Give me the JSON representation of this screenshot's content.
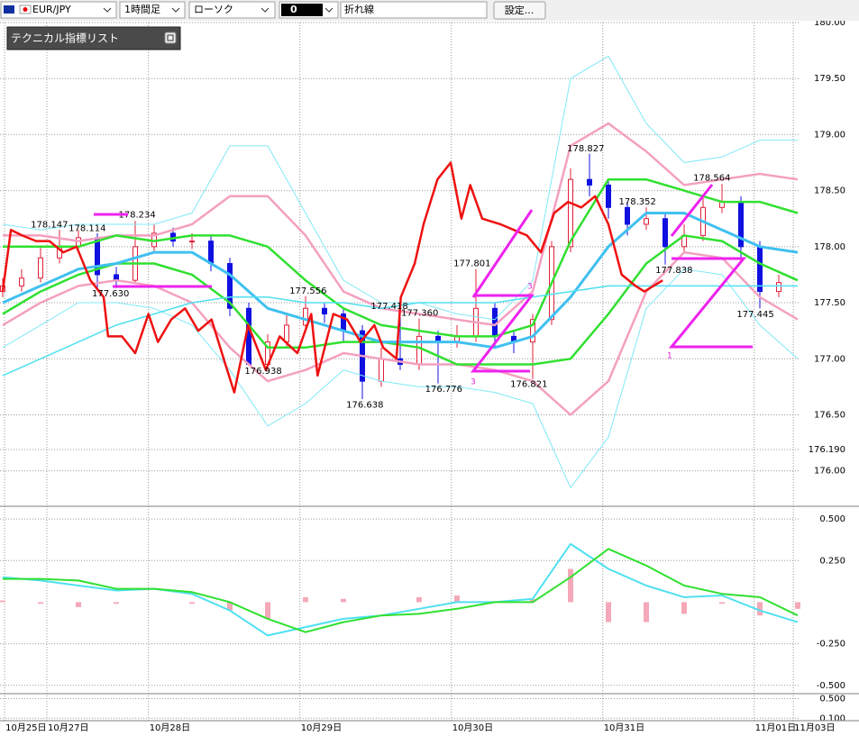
{
  "toolbar": {
    "symbol": "EUR/JPY",
    "timeframe": "1時間足",
    "chart_style": "ローソク",
    "field_value": "0",
    "line_type": "折れ線",
    "settings_button": "設定..."
  },
  "indicator_list": {
    "title": "テクニカル指標リスト"
  },
  "drawing_labels": [
    "3",
    "3",
    "1"
  ],
  "chart_data": [
    {
      "type": "candlestick",
      "xlim": [
        0,
        126
      ],
      "ylim": [
        175.7,
        180
      ],
      "grid": true,
      "yticks": [
        {
          "value": 180,
          "label": "180.00"
        },
        {
          "value": 179.5,
          "label": "179.50"
        },
        {
          "value": 179,
          "label": "179.00"
        },
        {
          "value": 178.5,
          "label": "178.50"
        },
        {
          "value": 178,
          "label": "178.00"
        },
        {
          "value": 177.5,
          "label": "177.50"
        },
        {
          "value": 177,
          "label": "177.00"
        },
        {
          "value": 176.5,
          "label": "176.50"
        },
        {
          "value": 176.19,
          "label": "176.190"
        },
        {
          "value": 176,
          "label": "176.00"
        }
      ],
      "xticks": [
        {
          "value": 0.3,
          "label": "10月25日"
        },
        {
          "value": 7,
          "label": "10月27日"
        },
        {
          "value": 23.1,
          "label": "10月28日"
        },
        {
          "value": 47.1,
          "label": "10月29日"
        },
        {
          "value": 71.1,
          "label": "10月30日"
        },
        {
          "value": 95.1,
          "label": "10月31日"
        },
        {
          "value": 119.1,
          "label": "11月01日"
        },
        {
          "value": 125.3,
          "label": "11月03日"
        }
      ],
      "candles": {
        "up_color": "#e0203a",
        "down_color": "#1010e0",
        "x": [
          0,
          3,
          6,
          9,
          12,
          15,
          18,
          21,
          24,
          27,
          30,
          33,
          36,
          39,
          42,
          45,
          48,
          51,
          54,
          57,
          60,
          63,
          66,
          69,
          72,
          75,
          78,
          81,
          84,
          87,
          90,
          93,
          96,
          99,
          102,
          105,
          108,
          111,
          114,
          117,
          120,
          123
        ],
        "open": [
          177.6,
          177.65,
          177.72,
          177.9,
          178.0,
          178.08,
          177.75,
          177.7,
          178.0,
          178.12,
          178.05,
          178.05,
          177.85,
          177.45,
          176.95,
          177.15,
          177.3,
          177.45,
          177.4,
          177.25,
          176.8,
          177.0,
          176.95,
          177.2,
          177.15,
          177.2,
          177.45,
          177.2,
          177.15,
          177.35,
          178.0,
          178.6,
          178.55,
          178.35,
          178.2,
          178.25,
          178.0,
          178.1,
          178.35,
          178.4,
          178.0,
          177.6
        ],
        "high": [
          177.72,
          177.8,
          178.0,
          178.15,
          178.15,
          178.12,
          177.82,
          178.23,
          178.2,
          178.17,
          178.12,
          178.1,
          177.9,
          177.5,
          177.22,
          177.4,
          177.56,
          177.5,
          177.45,
          177.3,
          177.1,
          177.42,
          177.36,
          177.25,
          177.3,
          177.8,
          177.5,
          177.25,
          177.4,
          178.05,
          178.7,
          178.83,
          178.6,
          178.4,
          178.35,
          178.3,
          178.2,
          178.45,
          178.56,
          178.45,
          178.05,
          177.75
        ],
        "low": [
          177.55,
          177.6,
          177.68,
          177.85,
          177.95,
          177.63,
          177.63,
          177.68,
          177.95,
          178.0,
          177.98,
          177.78,
          177.38,
          176.94,
          176.9,
          177.1,
          177.25,
          177.32,
          177.15,
          176.64,
          176.75,
          176.9,
          176.9,
          176.78,
          177.1,
          177.15,
          177.1,
          177.05,
          176.82,
          177.3,
          177.95,
          178.45,
          178.25,
          178.1,
          178.15,
          177.84,
          177.95,
          178.05,
          178.3,
          177.9,
          177.45,
          177.55
        ],
        "close": [
          177.65,
          177.72,
          177.9,
          178.0,
          178.08,
          177.75,
          177.7,
          178.0,
          178.12,
          178.05,
          178.05,
          177.85,
          177.45,
          176.95,
          177.15,
          177.3,
          177.45,
          177.4,
          177.25,
          176.8,
          177.0,
          176.95,
          177.2,
          177.15,
          177.2,
          177.45,
          177.2,
          177.15,
          177.35,
          178.0,
          178.6,
          178.55,
          178.35,
          178.2,
          178.25,
          178.0,
          178.1,
          178.35,
          178.4,
          178.0,
          177.6,
          177.68
        ]
      },
      "x": [
        0,
        6,
        12,
        18,
        24,
        30,
        36,
        42,
        48,
        54,
        60,
        66,
        72,
        78,
        84,
        90,
        96,
        102,
        108,
        114,
        120,
        126
      ],
      "series": [
        {
          "color": "#80e8f8",
          "width": 1,
          "values": [
            178.2,
            178.15,
            178.2,
            178.2,
            178.2,
            178.3,
            178.9,
            178.9,
            178.3,
            177.7,
            177.5,
            177.5,
            177.4,
            177.35,
            177.7,
            179.5,
            179.7,
            179.1,
            178.75,
            178.8,
            178.95,
            178.95
          ]
        },
        {
          "color": "#80e8f8",
          "width": 1,
          "values": [
            177.1,
            177.3,
            177.5,
            177.5,
            177.45,
            177.3,
            176.9,
            176.4,
            176.6,
            176.9,
            176.8,
            176.75,
            176.75,
            176.7,
            176.6,
            175.85,
            176.3,
            177.45,
            177.8,
            177.75,
            177.3,
            177.0
          ]
        },
        {
          "color": "#f4a0c0",
          "width": 2.5,
          "values": [
            178.1,
            178.1,
            178.05,
            178.1,
            178.1,
            178.2,
            178.45,
            178.45,
            178.1,
            177.6,
            177.45,
            177.4,
            177.35,
            177.3,
            177.6,
            178.9,
            179.1,
            178.85,
            178.55,
            178.6,
            178.65,
            178.6
          ]
        },
        {
          "color": "#f4a0c0",
          "width": 2.5,
          "values": [
            177.3,
            177.5,
            177.65,
            177.7,
            177.65,
            177.5,
            177.1,
            176.8,
            176.9,
            177.05,
            177.0,
            176.95,
            176.95,
            176.9,
            176.8,
            176.5,
            176.8,
            177.6,
            177.95,
            177.9,
            177.55,
            177.35
          ]
        },
        {
          "color": "#30e030",
          "width": 2.5,
          "values": [
            178.0,
            178.0,
            178.0,
            178.1,
            178.05,
            178.1,
            178.1,
            178.0,
            177.7,
            177.45,
            177.3,
            177.25,
            177.2,
            177.2,
            177.3,
            178.05,
            178.6,
            178.6,
            178.5,
            178.4,
            178.4,
            178.3
          ]
        },
        {
          "color": "#30e030",
          "width": 2.5,
          "values": [
            177.4,
            177.6,
            177.75,
            177.85,
            177.85,
            177.75,
            177.5,
            177.1,
            177.1,
            177.15,
            177.15,
            177.1,
            176.95,
            176.95,
            176.95,
            177.0,
            177.4,
            177.85,
            178.1,
            178.05,
            177.85,
            177.7
          ]
        },
        {
          "color": "#40c0f0",
          "width": 3,
          "values": [
            177.5,
            177.65,
            177.8,
            177.85,
            177.95,
            177.95,
            177.75,
            177.45,
            177.35,
            177.25,
            177.15,
            177.15,
            177.15,
            177.1,
            177.2,
            177.55,
            178.0,
            178.3,
            178.3,
            178.15,
            178.0,
            177.95
          ]
        },
        {
          "color": "#50e0f0",
          "width": 1.5,
          "values": [
            176.85,
            177.0,
            177.15,
            177.3,
            177.4,
            177.5,
            177.55,
            177.55,
            177.5,
            177.5,
            177.45,
            177.5,
            177.5,
            177.5,
            177.55,
            177.6,
            177.65,
            177.65,
            177.65,
            177.65,
            177.65,
            177.65
          ]
        },
        {
          "color": "#ee1111",
          "width": 2.5,
          "x": [
            0,
            1.3,
            3.1,
            5.3,
            7.4,
            9.6,
            11.7,
            13.9,
            16,
            16.7,
            18.9,
            21,
            23.1,
            24.6,
            26.7,
            28.9,
            31,
            33.1,
            35.3,
            36.7,
            38.9,
            41.7,
            43.9,
            46.7,
            48.9,
            49.9,
            52.4,
            54.6,
            56.7,
            58.9,
            60.3,
            62.4,
            63.1,
            65.3,
            66.7,
            68.9,
            71,
            72.7,
            74.1,
            76,
            78.9,
            81,
            83.1,
            85.3,
            87.4,
            89.6,
            91.7,
            93.9,
            96,
            98.1,
            100.3,
            101.7,
            104.6
          ],
          "values": [
            177.6,
            178.15,
            178.1,
            178.05,
            178.05,
            177.95,
            178.0,
            177.7,
            177.55,
            177.2,
            177.2,
            177.05,
            177.4,
            177.15,
            177.35,
            177.45,
            177.25,
            177.35,
            176.95,
            176.7,
            177.3,
            176.9,
            177.2,
            177.05,
            177.4,
            176.85,
            177.4,
            177.35,
            177.15,
            177.3,
            177.1,
            177.0,
            177.55,
            177.85,
            178.2,
            178.6,
            178.75,
            178.25,
            178.55,
            178.25,
            178.2,
            178.15,
            178.1,
            177.95,
            178.3,
            178.4,
            178.35,
            178.45,
            178.2,
            177.75,
            177.65,
            177.6,
            177.7
          ]
        }
      ],
      "annotations": [
        {
          "label": "178.147",
          "value": 178.147,
          "x": 7.4,
          "position": "above"
        },
        {
          "label": "178.114",
          "value": 178.114,
          "x": 13.4,
          "position": "above"
        },
        {
          "label": "178.234",
          "value": 178.234,
          "x": 21.3,
          "position": "above"
        },
        {
          "label": "177.630",
          "value": 177.63,
          "x": 17.1,
          "position": "below"
        },
        {
          "label": "177.556",
          "value": 177.556,
          "x": 48.4,
          "position": "above"
        },
        {
          "label": "176.938",
          "value": 176.938,
          "x": 41.3,
          "position": "below"
        },
        {
          "label": "177.418",
          "value": 177.418,
          "x": 61.3,
          "position": "above"
        },
        {
          "label": "177.360",
          "value": 177.36,
          "x": 66.1,
          "position": "above"
        },
        {
          "label": "176.638",
          "value": 176.638,
          "x": 57.4,
          "position": "below"
        },
        {
          "label": "177.801",
          "value": 177.801,
          "x": 74.4,
          "position": "above"
        },
        {
          "label": "176.776",
          "value": 176.776,
          "x": 69.9,
          "position": "below"
        },
        {
          "label": "176.821",
          "value": 176.821,
          "x": 83.4,
          "position": "below"
        },
        {
          "label": "178.827",
          "value": 178.827,
          "x": 92.4,
          "position": "above"
        },
        {
          "label": "178.352",
          "value": 178.352,
          "x": 100.6,
          "position": "above"
        },
        {
          "label": "178.564",
          "value": 178.564,
          "x": 112.4,
          "position": "above"
        },
        {
          "label": "177.838",
          "value": 177.838,
          "x": 106.4,
          "position": "below"
        },
        {
          "label": "177.445",
          "value": 177.445,
          "x": 119.3,
          "position": "below"
        }
      ]
    },
    {
      "type": "line",
      "xlim": [
        0,
        126
      ],
      "ylim": [
        -0.55,
        0.56
      ],
      "grid": true,
      "yticks": [
        {
          "value": 0.5,
          "label": "0.500"
        },
        {
          "value": 0.25,
          "label": "0.250"
        },
        {
          "value": -0.25,
          "label": "-0.250"
        },
        {
          "value": -0.5,
          "label": "-0.500"
        }
      ],
      "x": [
        0,
        6,
        12,
        18,
        24,
        30,
        36,
        42,
        48,
        54,
        60,
        66,
        72,
        78,
        84,
        90,
        96,
        102,
        108,
        114,
        120,
        126
      ],
      "bars": {
        "color": "#f4a8b8",
        "values": [
          0.01,
          -0.01,
          -0.03,
          -0.01,
          0,
          -0.01,
          -0.05,
          -0.1,
          0.03,
          0.02,
          0,
          0.03,
          0.04,
          0,
          0.02,
          0.2,
          -0.12,
          -0.12,
          -0.07,
          -0.01,
          -0.08,
          -0.04
        ]
      },
      "series": [
        {
          "color": "#50e0f0",
          "width": 2,
          "values": [
            0.15,
            0.13,
            0.1,
            0.07,
            0.08,
            0.05,
            -0.05,
            -0.2,
            -0.15,
            -0.1,
            -0.08,
            -0.04,
            0.0,
            0.0,
            0.02,
            0.35,
            0.2,
            0.1,
            0.03,
            0.04,
            -0.05,
            -0.12
          ]
        },
        {
          "color": "#30e030",
          "width": 2,
          "values": [
            0.14,
            0.14,
            0.13,
            0.08,
            0.08,
            0.06,
            0.0,
            -0.1,
            -0.18,
            -0.12,
            -0.08,
            -0.07,
            -0.04,
            0.0,
            0.0,
            0.15,
            0.32,
            0.22,
            0.1,
            0.05,
            0.03,
            -0.08
          ]
        }
      ]
    },
    {
      "type": "line",
      "xlim": [
        0,
        126
      ],
      "ylim": [
        0.05,
        0.6
      ],
      "grid": true,
      "yticks": [
        {
          "value": 0.5,
          "label": "0.500"
        },
        {
          "value": 0.1,
          "label": "0.100"
        }
      ]
    }
  ]
}
